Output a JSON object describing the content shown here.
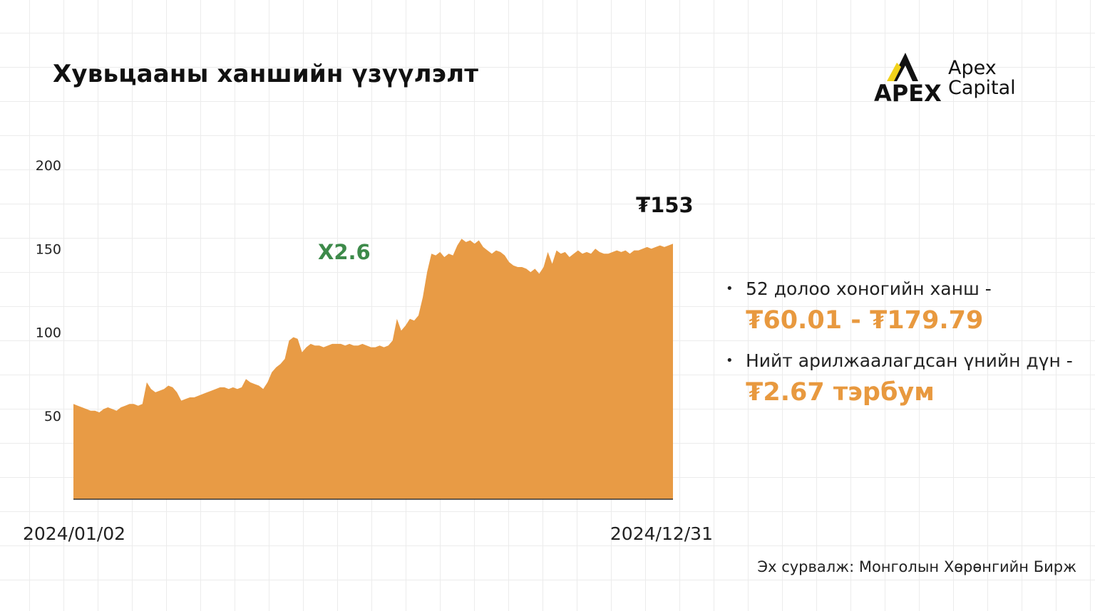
{
  "title": "Хувьцааны ханшийн үзүүлэлт",
  "logo": {
    "mark": "APEX",
    "line1": "Apex",
    "line2": "Capital"
  },
  "chart_data": {
    "type": "area",
    "title": "",
    "xlabel": "",
    "ylabel": "",
    "x_start_label": "2024/01/02",
    "x_end_label": "2024/12/31",
    "yticks": [
      "200",
      "150",
      "100",
      "50"
    ],
    "ytick_values": [
      200,
      150,
      100,
      50
    ],
    "ylim": [
      0,
      200
    ],
    "grid": true,
    "color": "#e89b45",
    "annotations": {
      "multiple": "X2.6",
      "last_price": "₮153"
    },
    "values": [
      57,
      56,
      55,
      54,
      53,
      53,
      52,
      54,
      55,
      54,
      53,
      55,
      56,
      57,
      57,
      56,
      57,
      70,
      66,
      64,
      65,
      66,
      68,
      67,
      64,
      59,
      60,
      61,
      61,
      62,
      63,
      64,
      65,
      66,
      67,
      67,
      66,
      67,
      66,
      67,
      72,
      70,
      69,
      68,
      66,
      70,
      76,
      79,
      81,
      84,
      95,
      97,
      96,
      88,
      91,
      93,
      92,
      92,
      91,
      92,
      93,
      93,
      93,
      92,
      93,
      92,
      92,
      93,
      92,
      91,
      91,
      92,
      91,
      92,
      95,
      108,
      101,
      104,
      108,
      107,
      110,
      121,
      136,
      147,
      146,
      148,
      145,
      147,
      146,
      152,
      156,
      154,
      155,
      153,
      155,
      151,
      149,
      147,
      149,
      148,
      146,
      142,
      140,
      139,
      139,
      138,
      136,
      138,
      135,
      139,
      148,
      141,
      149,
      147,
      148,
      145,
      147,
      149,
      147,
      148,
      147,
      150,
      148,
      147,
      147,
      148,
      149,
      148,
      149,
      147,
      149,
      149,
      150,
      151,
      150,
      151,
      152,
      151,
      152,
      153
    ]
  },
  "facts": [
    {
      "text": "52 долоо хоногийн ханш -",
      "highlight": "₮60.01 - ₮179.79"
    },
    {
      "text": "Нийт арилжаалагдсан үнийн дүн -",
      "highlight": "₮2.67 тэрбум"
    }
  ],
  "source": "Эх сурвалж: Монголын Хөрөнгийн Бирж"
}
